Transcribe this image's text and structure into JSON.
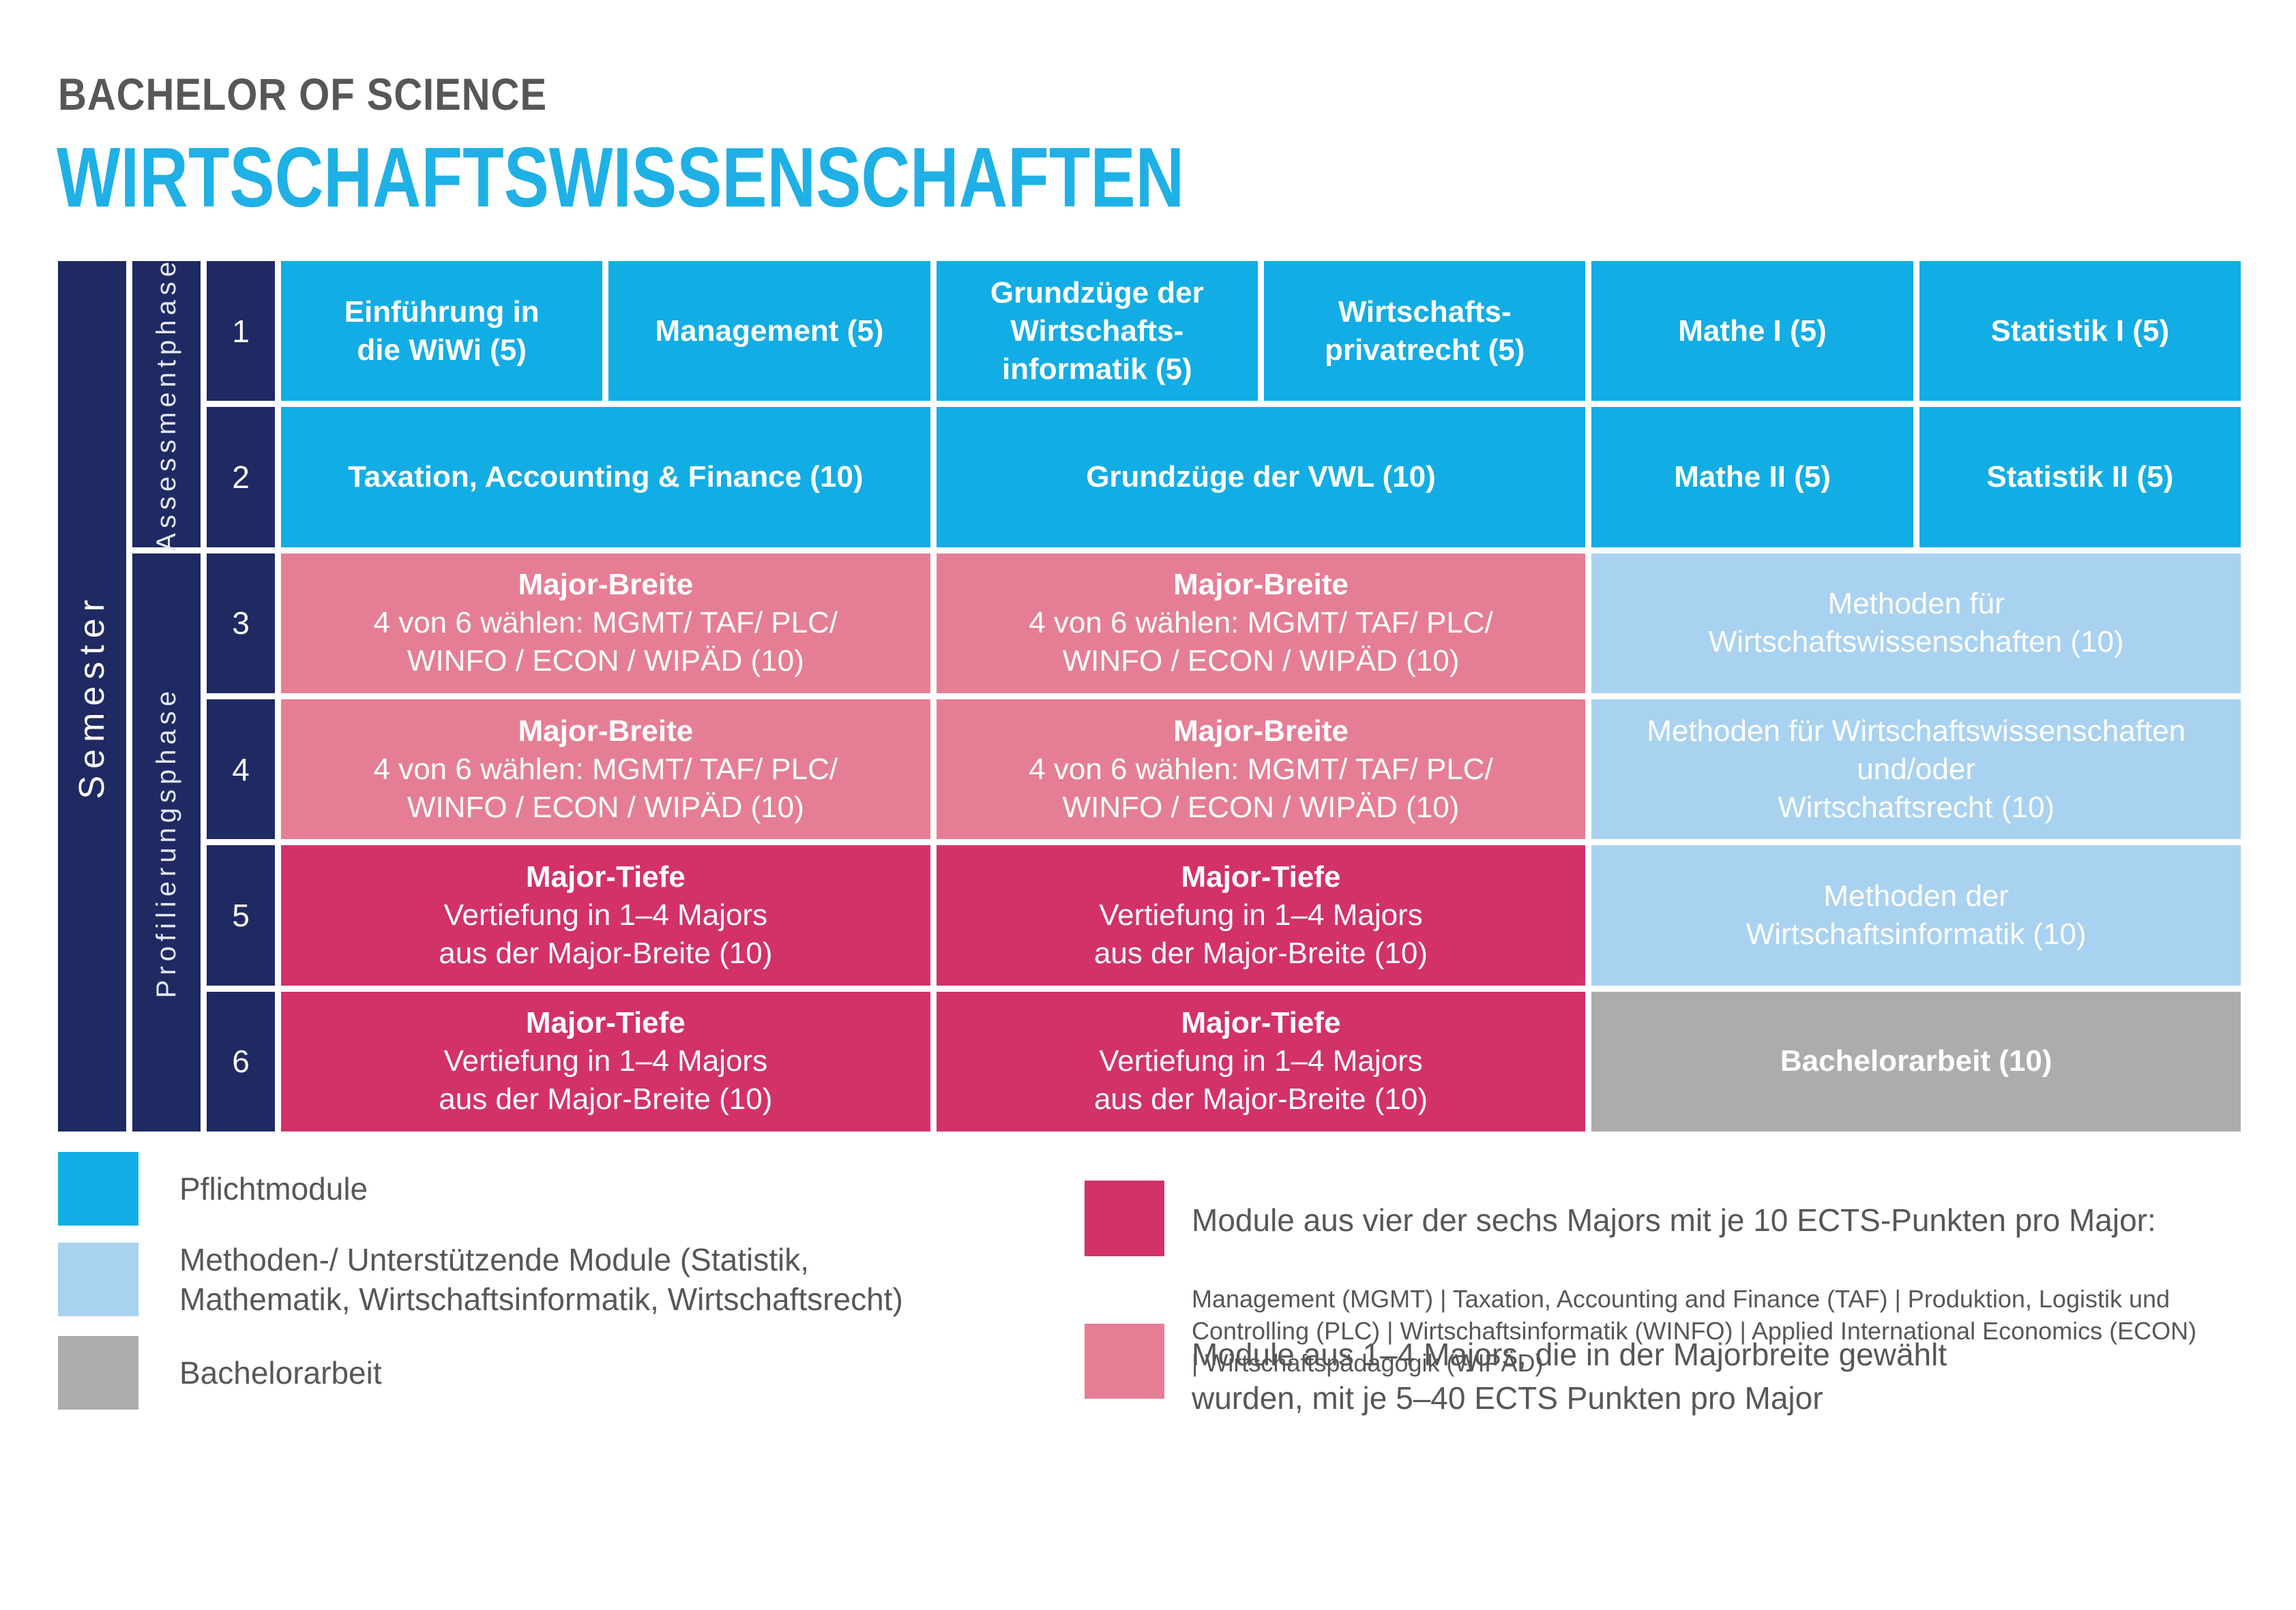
{
  "header": {
    "degree": "BACHELOR OF SCIENCE",
    "program": "WIRTSCHAFTSWISSENSCHAFTEN"
  },
  "colors": {
    "navy": "#1F2A63",
    "pflichtmodule_cyan": "#12ADE4",
    "methoden_lightblue": "#A9D2F1",
    "major_breite_pink": "#E57E94",
    "major_tiefe_magenta": "#D23267",
    "bachelorarbeit_gray": "#ACACAC",
    "title_cyan": "#1FB0E6",
    "text_gray": "#575756"
  },
  "table": {
    "semester_label": "Semester",
    "phase_labels": {
      "assessment": "Assessmentphase",
      "profiling": "Profilierungsphase"
    },
    "semesters": [
      "1",
      "2",
      "3",
      "4",
      "5",
      "6"
    ],
    "cells": {
      "r1c1": {
        "text": "Einführung in\ndie WiWi (5)"
      },
      "r1c2": {
        "text": "Management (5)"
      },
      "r1c3": {
        "text": "Grundzüge der\nWirtschafts-\ninformatik (5)"
      },
      "r1c4": {
        "text": "Wirtschafts-\nprivatrecht (5)"
      },
      "r1c5": {
        "text": "Mathe I (5)"
      },
      "r1c6": {
        "text": "Statistik I (5)"
      },
      "r2c1": {
        "text": "Taxation, Accounting & Finance (10)"
      },
      "r2c2": {
        "text": "Grundzüge der VWL (10)"
      },
      "r2c3": {
        "text": "Mathe II (5)"
      },
      "r2c4": {
        "text": "Statistik II (5)"
      },
      "r3c1": {
        "title": "Major-Breite",
        "body": "4 von 6 wählen: MGMT/ TAF/ PLC/\nWINFO / ECON / WIPÄD (10)"
      },
      "r3c2": {
        "title": "Major-Breite",
        "body": "4 von 6 wählen: MGMT/ TAF/ PLC/\nWINFO / ECON / WIPÄD (10)"
      },
      "r3c3": {
        "text": "Methoden für\nWirtschaftswissenschaften (10)"
      },
      "r4c1": {
        "title": "Major-Breite",
        "body": "4 von 6 wählen: MGMT/ TAF/ PLC/\nWINFO / ECON / WIPÄD (10)"
      },
      "r4c2": {
        "title": "Major-Breite",
        "body": "4 von 6 wählen: MGMT/ TAF/ PLC/\nWINFO / ECON / WIPÄD (10)"
      },
      "r4c3": {
        "text": "Methoden für Wirtschaftswissenschaften\nund/oder\nWirtschaftsrecht (10)"
      },
      "r5c1": {
        "title": "Major-Tiefe",
        "body": "Vertiefung in 1–4 Majors\naus der Major-Breite (10)"
      },
      "r5c2": {
        "title": "Major-Tiefe",
        "body": "Vertiefung in 1–4 Majors\naus der Major-Breite (10)"
      },
      "r5c3": {
        "text": "Methoden der\nWirtschaftsinformatik (10)"
      },
      "r6c1": {
        "title": "Major-Tiefe",
        "body": "Vertiefung in 1–4 Majors\naus der Major-Breite (10)"
      },
      "r6c2": {
        "title": "Major-Tiefe",
        "body": "Vertiefung in 1–4 Majors\naus der Major-Breite (10)"
      },
      "r6c3": {
        "text": "Bachelorarbeit (10)"
      }
    }
  },
  "legend": {
    "pflicht": {
      "label": "Pflichtmodule"
    },
    "methoden": {
      "label": "Methoden-/ Unterstützende Module (Statistik,\nMathematik, Wirtschaftsinformatik, Wirtschaftsrecht)"
    },
    "bachelor": {
      "label": "Bachelorarbeit"
    },
    "majors_10ects": {
      "title": "Module aus vier der sechs Majors mit je 10 ECTS-Punkten pro Major:",
      "detail": "Management (MGMT) | Taxation, Accounting and Finance (TAF) | Produktion, Logistik und\nControlling (PLC) | Wirtschaftsinformatik (WINFO) | Applied International Economics (ECON)\n| Wirtschaftspädagogik (WIPÄD)"
    },
    "majors_5to40": {
      "label": "Module aus 1–4 Majors, die in der Majorbreite gewählt\nwurden, mit je 5–40 ECTS Punkten pro Major"
    }
  }
}
